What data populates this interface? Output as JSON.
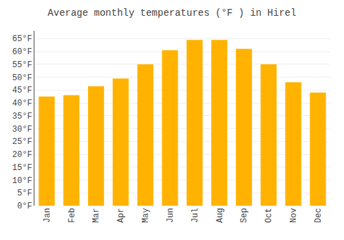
{
  "chart_data": {
    "type": "bar",
    "title": "Average monthly temperatures (°F ) in Hirel",
    "categories": [
      "Jan",
      "Feb",
      "Mar",
      "Apr",
      "May",
      "Jun",
      "Jul",
      "Aug",
      "Sep",
      "Oct",
      "Nov",
      "Dec"
    ],
    "values": [
      42.5,
      43.0,
      46.5,
      49.5,
      55.0,
      60.5,
      64.5,
      64.5,
      61.0,
      55.0,
      48.0,
      44.0
    ],
    "color": "#FFB300",
    "ylim": [
      0,
      68
    ],
    "yticks": [
      {
        "value": 0,
        "label": "0°F"
      },
      {
        "value": 5,
        "label": "5°F"
      },
      {
        "value": 10,
        "label": "10°F"
      },
      {
        "value": 15,
        "label": "15°F"
      },
      {
        "value": 20,
        "label": "20°F"
      },
      {
        "value": 25,
        "label": "25°F"
      },
      {
        "value": 30,
        "label": "30°F"
      },
      {
        "value": 35,
        "label": "35°F"
      },
      {
        "value": 40,
        "label": "40°F"
      },
      {
        "value": 45,
        "label": "45°F"
      },
      {
        "value": 50,
        "label": "50°F"
      },
      {
        "value": 55,
        "label": "55°F"
      },
      {
        "value": 60,
        "label": "60°F"
      },
      {
        "value": 65,
        "label": "65°F"
      }
    ],
    "grid": true
  }
}
